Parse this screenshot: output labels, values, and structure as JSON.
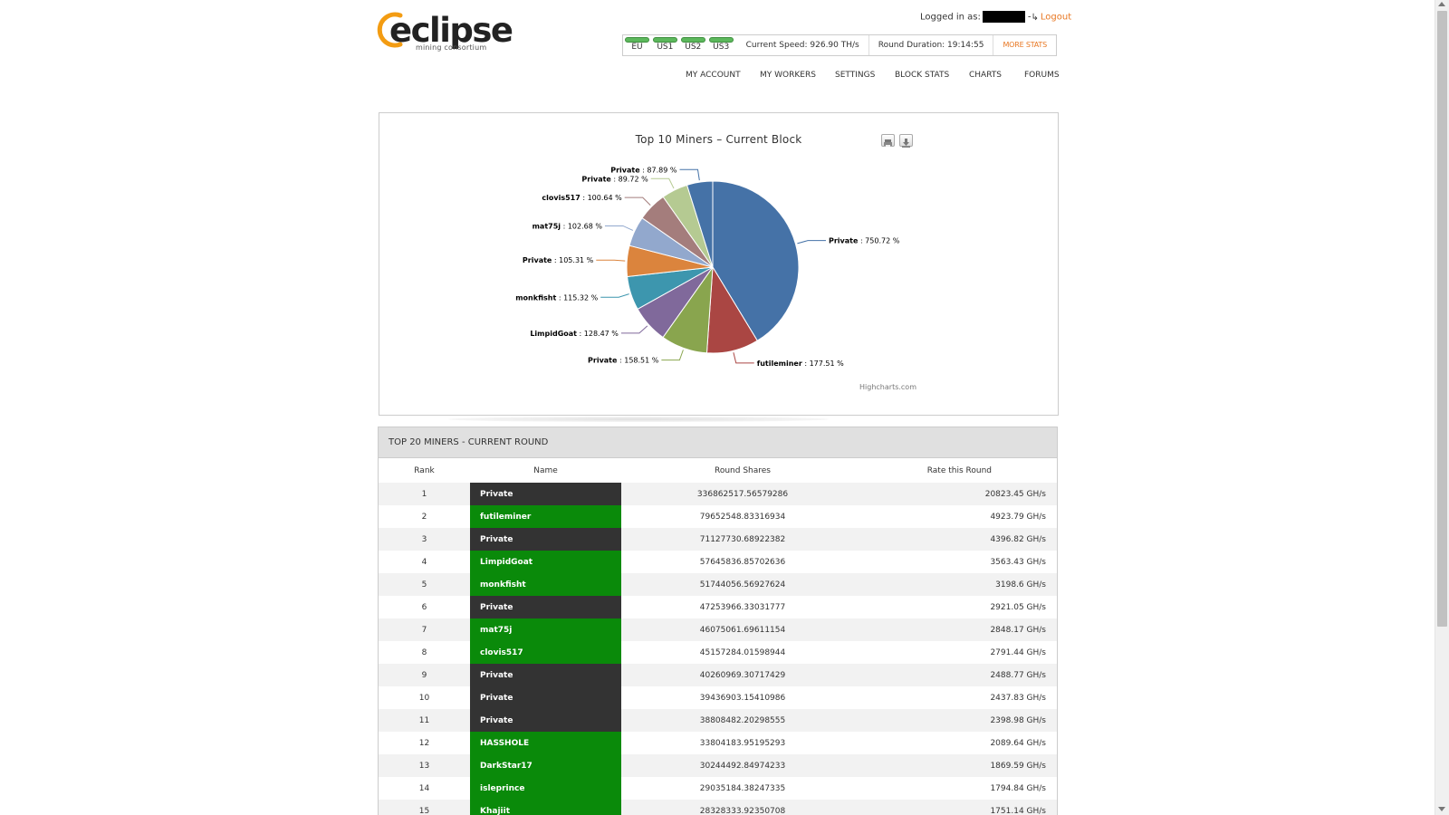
{
  "header": {
    "logo_text": "eclipse",
    "logo_subtitle": "mining consortium",
    "logged_in_label": "Logged in as:",
    "logout_label": "Logout"
  },
  "status": {
    "regions": [
      "EU",
      "US1",
      "US2",
      "US3"
    ],
    "current_speed": "Current Speed: 926.90 TH/s",
    "round_duration": "Round Duration: 19:14:55",
    "more_stats": "MORE STATS"
  },
  "nav": {
    "items": [
      "MY ACCOUNT",
      "MY WORKERS",
      "SETTINGS",
      "BLOCK STATS",
      "CHARTS",
      "FORUMS"
    ]
  },
  "chart": {
    "credits": "Highcharts.com",
    "colors": [
      "#4572A7",
      "#AA4643",
      "#89A54E",
      "#80699B",
      "#3D96AE",
      "#DB843D",
      "#92A8CD",
      "#A47D7C",
      "#B5CA92",
      "#4572A7"
    ]
  },
  "chart_data": {
    "type": "pie",
    "title": "Top 10 Miners – Current Block",
    "slices": [
      {
        "label": "Private",
        "value": 750.72,
        "text": ": 750.72 %"
      },
      {
        "label": "futileminer",
        "value": 177.51,
        "text": ": 177.51 %"
      },
      {
        "label": "Private",
        "value": 158.51,
        "text": ": 158.51 %"
      },
      {
        "label": "LimpidGoat",
        "value": 128.47,
        "text": ": 128.47 %"
      },
      {
        "label": "monkfisht",
        "value": 115.32,
        "text": ": 115.32 %"
      },
      {
        "label": "Private",
        "value": 105.31,
        "text": ": 105.31 %"
      },
      {
        "label": "mat75j",
        "value": 102.68,
        "text": ": 102.68 %"
      },
      {
        "label": "clovis517",
        "value": 100.64,
        "text": ": 100.64 %"
      },
      {
        "label": "Private",
        "value": 89.72,
        "text": ": 89.72 %"
      },
      {
        "label": "Private",
        "value": 87.89,
        "text": ": 87.89 %"
      }
    ]
  },
  "table": {
    "title": "TOP 20 MINERS - CURRENT ROUND",
    "columns": [
      "Rank",
      "Name",
      "Round Shares",
      "Rate this Round"
    ],
    "rows": [
      {
        "rank": "1",
        "name": "Private",
        "shares": "336862517.56579286",
        "rate": "20823.45 GH/s",
        "private": true
      },
      {
        "rank": "2",
        "name": "futileminer",
        "shares": "79652548.83316934",
        "rate": "4923.79 GH/s",
        "private": false
      },
      {
        "rank": "3",
        "name": "Private",
        "shares": "71127730.68922382",
        "rate": "4396.82 GH/s",
        "private": true
      },
      {
        "rank": "4",
        "name": "LimpidGoat",
        "shares": "57645836.85702636",
        "rate": "3563.43 GH/s",
        "private": false
      },
      {
        "rank": "5",
        "name": "monkfisht",
        "shares": "51744056.56927624",
        "rate": "3198.6 GH/s",
        "private": false
      },
      {
        "rank": "6",
        "name": "Private",
        "shares": "47253966.33031777",
        "rate": "2921.05 GH/s",
        "private": true
      },
      {
        "rank": "7",
        "name": "mat75j",
        "shares": "46075061.69611154",
        "rate": "2848.17 GH/s",
        "private": false
      },
      {
        "rank": "8",
        "name": "clovis517",
        "shares": "45157284.01598944",
        "rate": "2791.44 GH/s",
        "private": false
      },
      {
        "rank": "9",
        "name": "Private",
        "shares": "40260969.30717429",
        "rate": "2488.77 GH/s",
        "private": true
      },
      {
        "rank": "10",
        "name": "Private",
        "shares": "39436903.15410986",
        "rate": "2437.83 GH/s",
        "private": true
      },
      {
        "rank": "11",
        "name": "Private",
        "shares": "38808482.20298555",
        "rate": "2398.98 GH/s",
        "private": true
      },
      {
        "rank": "12",
        "name": "HASSHOLE",
        "shares": "33804183.95195293",
        "rate": "2089.64 GH/s",
        "private": false
      },
      {
        "rank": "13",
        "name": "DarkStar17",
        "shares": "30244492.84974233",
        "rate": "1869.59 GH/s",
        "private": false
      },
      {
        "rank": "14",
        "name": "isleprince",
        "shares": "29035184.38247335",
        "rate": "1794.84 GH/s",
        "private": false
      },
      {
        "rank": "15",
        "name": "Khajiit",
        "shares": "28328333.92350708",
        "rate": "1751.14 GH/s",
        "private": false
      }
    ]
  }
}
